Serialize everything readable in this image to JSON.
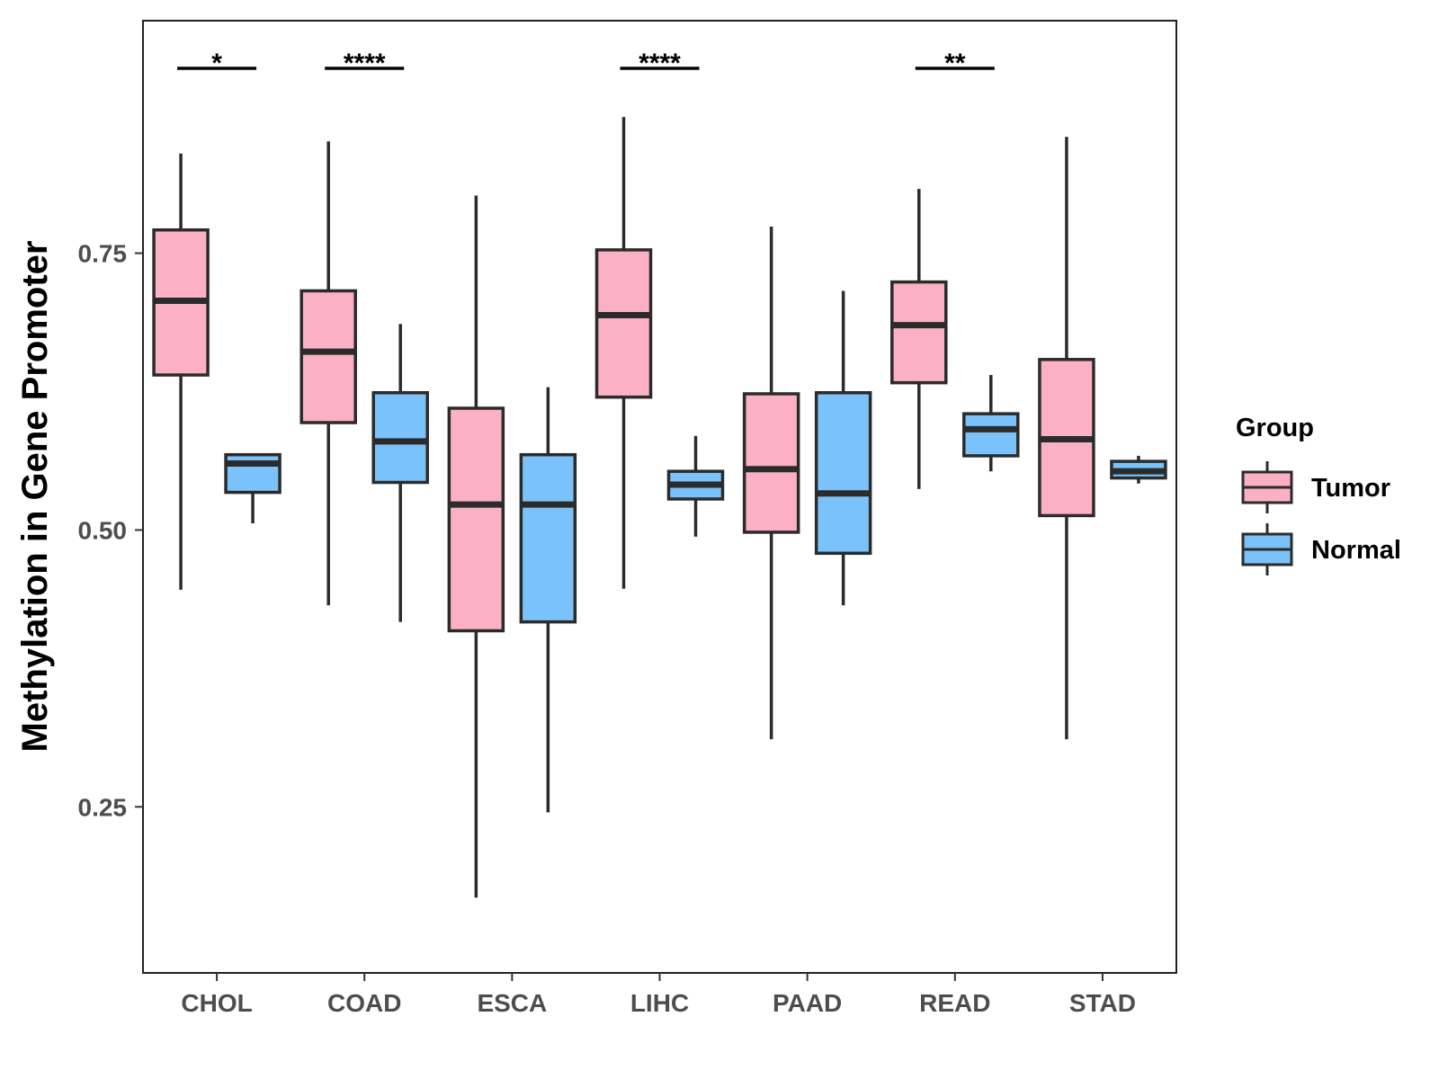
{
  "chart_data": {
    "type": "boxplot",
    "title": "",
    "xlabel": "",
    "ylabel": "Methylation in Gene Promoter",
    "ylim": [
      0.1,
      0.96
    ],
    "yticks": [
      0.25,
      0.5,
      0.75
    ],
    "ytick_labels": [
      "0.25",
      "0.50",
      "0.75"
    ],
    "categories": [
      "CHOL",
      "COAD",
      "ESCA",
      "LIHC",
      "PAAD",
      "READ",
      "STAD"
    ],
    "legend": {
      "title": "Group",
      "position": "right",
      "entries": [
        {
          "name": "Tumor",
          "color": "#fbb0c3"
        },
        {
          "name": "Normal",
          "color": "#7ac2f9"
        }
      ]
    },
    "series": [
      {
        "name": "Tumor",
        "color": "#fbb0c3",
        "boxes": [
          {
            "category": "CHOL",
            "min": 0.446,
            "q1": 0.64,
            "median": 0.707,
            "q3": 0.771,
            "max": 0.84
          },
          {
            "category": "COAD",
            "min": 0.432,
            "q1": 0.597,
            "median": 0.661,
            "q3": 0.716,
            "max": 0.851
          },
          {
            "category": "ESCA",
            "min": 0.168,
            "q1": 0.409,
            "median": 0.523,
            "q3": 0.61,
            "max": 0.802
          },
          {
            "category": "LIHC",
            "min": 0.447,
            "q1": 0.62,
            "median": 0.694,
            "q3": 0.753,
            "max": 0.873
          },
          {
            "category": "PAAD",
            "min": 0.311,
            "q1": 0.498,
            "median": 0.555,
            "q3": 0.623,
            "max": 0.774
          },
          {
            "category": "READ",
            "min": 0.537,
            "q1": 0.633,
            "median": 0.685,
            "q3": 0.724,
            "max": 0.808
          },
          {
            "category": "STAD",
            "min": 0.311,
            "q1": 0.513,
            "median": 0.582,
            "q3": 0.654,
            "max": 0.855
          }
        ]
      },
      {
        "name": "Normal",
        "color": "#7ac2f9",
        "boxes": [
          {
            "category": "CHOL",
            "min": 0.506,
            "q1": 0.534,
            "median": 0.56,
            "q3": 0.568,
            "max": 0.569
          },
          {
            "category": "COAD",
            "min": 0.417,
            "q1": 0.543,
            "median": 0.58,
            "q3": 0.624,
            "max": 0.686
          },
          {
            "category": "ESCA",
            "min": 0.245,
            "q1": 0.417,
            "median": 0.523,
            "q3": 0.568,
            "max": 0.629
          },
          {
            "category": "LIHC",
            "min": 0.494,
            "q1": 0.528,
            "median": 0.541,
            "q3": 0.553,
            "max": 0.585
          },
          {
            "category": "PAAD",
            "min": 0.432,
            "q1": 0.479,
            "median": 0.533,
            "q3": 0.624,
            "max": 0.716
          },
          {
            "category": "READ",
            "min": 0.553,
            "q1": 0.567,
            "median": 0.591,
            "q3": 0.605,
            "max": 0.64
          },
          {
            "category": "STAD",
            "min": 0.542,
            "q1": 0.547,
            "median": 0.553,
            "q3": 0.562,
            "max": 0.567
          }
        ]
      }
    ],
    "significance": [
      {
        "category": "CHOL",
        "label": "*",
        "y": 0.917
      },
      {
        "category": "COAD",
        "label": "****",
        "y": 0.917
      },
      {
        "category": "LIHC",
        "label": "****",
        "y": 0.917
      },
      {
        "category": "READ",
        "label": "**",
        "y": 0.917
      }
    ]
  }
}
